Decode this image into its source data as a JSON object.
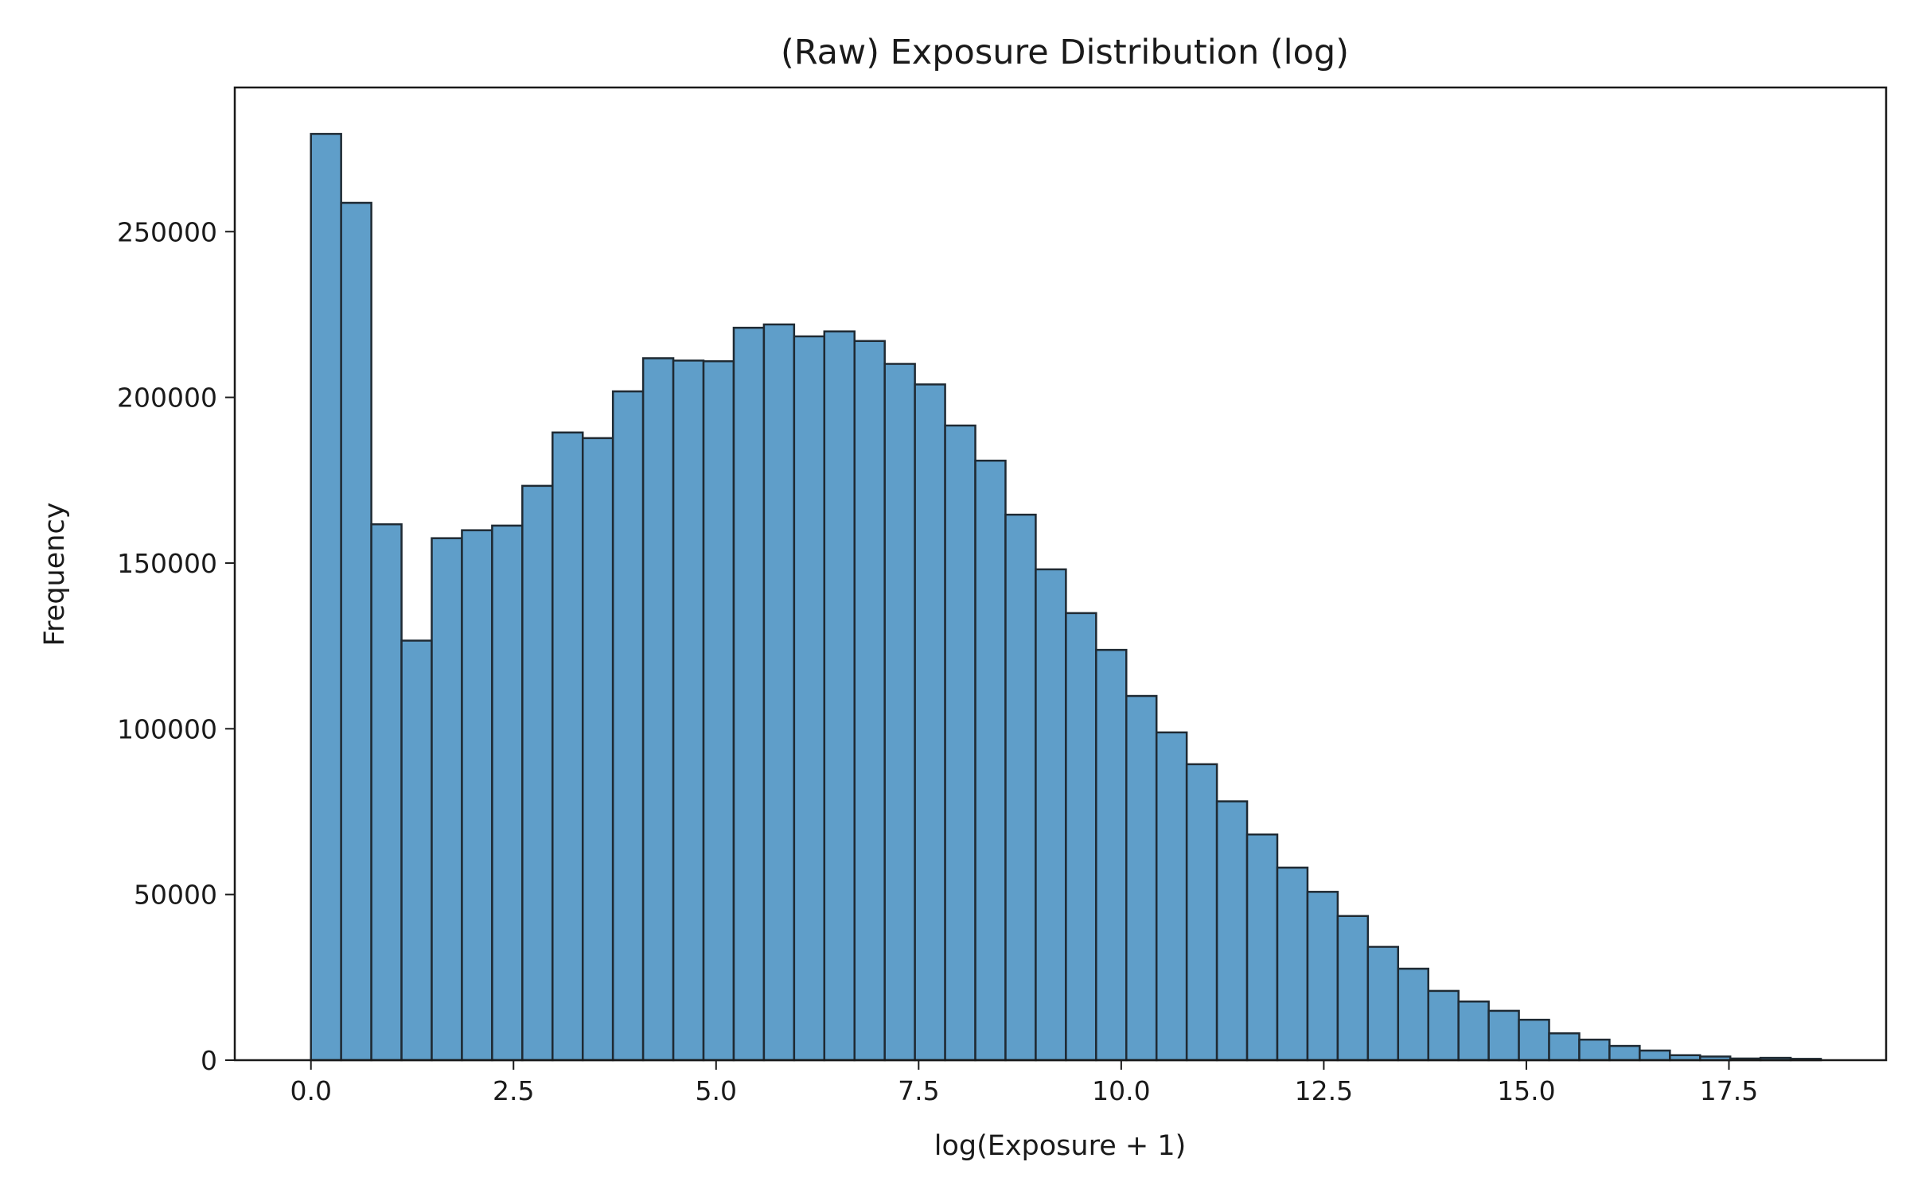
{
  "chart_data": {
    "type": "bar",
    "title": "(Raw) Exposure Distribution (log)",
    "xlabel": "log(Exposure + 1)",
    "ylabel": "Frequency",
    "xlim": [
      -0.94,
      19.44
    ],
    "ylim": [
      0,
      293500
    ],
    "x_ticks": [
      0.0,
      2.5,
      5.0,
      7.5,
      10.0,
      12.5,
      15.0,
      17.5
    ],
    "x_tick_labels": [
      "0.0",
      "2.5",
      "5.0",
      "7.5",
      "10.0",
      "12.5",
      "15.0",
      "17.5"
    ],
    "y_ticks": [
      0,
      50000,
      100000,
      150000,
      200000,
      250000
    ],
    "y_tick_labels": [
      "0",
      "50000",
      "100000",
      "150000",
      "200000",
      "250000"
    ],
    "bin_start": 0.0,
    "bin_width": 0.3727,
    "grid": false,
    "bar_color": "#5f9ec9",
    "edge_color": "#1f2a33",
    "values": [
      279500,
      258700,
      161700,
      126600,
      157500,
      159900,
      161300,
      173300,
      189400,
      187700,
      201800,
      211800,
      211100,
      210900,
      221000,
      222000,
      218400,
      219900,
      217000,
      210100,
      203900,
      191500,
      180900,
      164600,
      148100,
      134900,
      123800,
      109900,
      98900,
      89300,
      78100,
      68100,
      58100,
      50800,
      43500,
      34200,
      27600,
      20900,
      17700,
      14900,
      12200,
      8100,
      6200,
      4300,
      2900,
      1500,
      1100,
      500,
      700,
      400
    ]
  }
}
